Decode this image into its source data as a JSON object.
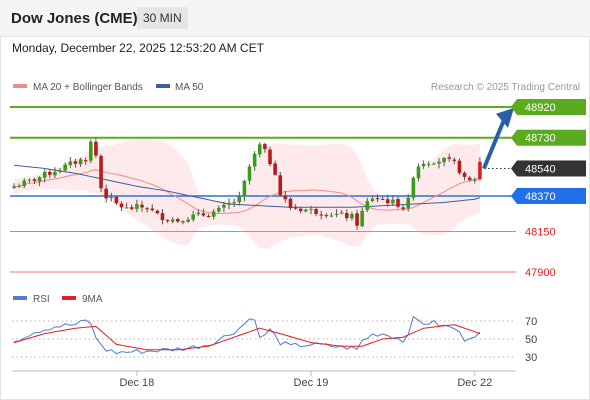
{
  "header": {
    "title": "Dow Jones (CME)",
    "interval": "30 MIN",
    "datetime": "Monday, December 22, 2025 12:53:20 AM CET"
  },
  "legend": {
    "ma20": {
      "label": "MA 20 + Bollinger Bands",
      "color": "#f08a8a"
    },
    "ma50": {
      "label": "MA 50",
      "color": "#3a5fa0"
    },
    "rsi": {
      "label": "RSI",
      "color": "#4d7bdc"
    },
    "rsi_ma": {
      "label": "9MA",
      "color": "#e02020"
    }
  },
  "copyright": "Research © 2025 Trading Central",
  "chart_data": {
    "type": "candlestick",
    "ylim": [
      47900,
      48920
    ],
    "x_tick_labels": [
      {
        "label": "Dec 18",
        "bar": 24
      },
      {
        "label": "Dec 19",
        "bar": 58
      },
      {
        "label": "Dec 22",
        "bar": 90
      }
    ],
    "levels": [
      {
        "value": 48920,
        "label": "48920",
        "kind": "resistance"
      },
      {
        "value": 48730,
        "label": "48730",
        "kind": "resistance"
      },
      {
        "value": 48540,
        "label": "48540",
        "kind": "last"
      },
      {
        "value": 48370,
        "label": "48370",
        "kind": "pivot"
      },
      {
        "value": 48150,
        "label": "48150",
        "kind": "support"
      },
      {
        "value": 47900,
        "label": "47900",
        "kind": "support"
      }
    ],
    "arrow": {
      "from_value": 48540,
      "to_value": 48890,
      "direction": "up"
    },
    "anchors": [
      [
        0,
        48430
      ],
      [
        3,
        48460
      ],
      [
        6,
        48500
      ],
      [
        9,
        48540
      ],
      [
        12,
        48580
      ],
      [
        14,
        48600
      ],
      [
        15,
        48700
      ],
      [
        16,
        48620
      ],
      [
        17,
        48420
      ],
      [
        18,
        48370
      ],
      [
        20,
        48320
      ],
      [
        22,
        48290
      ],
      [
        24,
        48300
      ],
      [
        26,
        48300
      ],
      [
        28,
        48250
      ],
      [
        30,
        48230
      ],
      [
        32,
        48220
      ],
      [
        34,
        48240
      ],
      [
        36,
        48250
      ],
      [
        38,
        48260
      ],
      [
        40,
        48280
      ],
      [
        42,
        48320
      ],
      [
        44,
        48350
      ],
      [
        45,
        48450
      ],
      [
        46,
        48550
      ],
      [
        47,
        48620
      ],
      [
        48,
        48680
      ],
      [
        49,
        48640
      ],
      [
        50,
        48580
      ],
      [
        51,
        48520
      ],
      [
        52,
        48380
      ],
      [
        54,
        48300
      ],
      [
        56,
        48290
      ],
      [
        58,
        48280
      ],
      [
        60,
        48270
      ],
      [
        62,
        48260
      ],
      [
        64,
        48250
      ],
      [
        66,
        48240
      ],
      [
        67,
        48200
      ],
      [
        68,
        48270
      ],
      [
        69,
        48330
      ],
      [
        70,
        48360
      ],
      [
        72,
        48350
      ],
      [
        74,
        48330
      ],
      [
        75,
        48320
      ],
      [
        76,
        48300
      ],
      [
        77,
        48340
      ],
      [
        78,
        48500
      ],
      [
        79,
        48560
      ],
      [
        80,
        48580
      ],
      [
        82,
        48590
      ],
      [
        84,
        48590
      ],
      [
        86,
        48570
      ],
      [
        87,
        48530
      ],
      [
        88,
        48470
      ],
      [
        89,
        48460
      ],
      [
        90,
        48480
      ],
      [
        91,
        48580
      ]
    ],
    "ma50_anchors": [
      [
        0,
        48560
      ],
      [
        6,
        48540
      ],
      [
        12,
        48510
      ],
      [
        18,
        48470
      ],
      [
        24,
        48430
      ],
      [
        30,
        48400
      ],
      [
        36,
        48360
      ],
      [
        42,
        48320
      ],
      [
        48,
        48310
      ],
      [
        54,
        48300
      ],
      [
        60,
        48300
      ],
      [
        66,
        48300
      ],
      [
        72,
        48310
      ],
      [
        78,
        48320
      ],
      [
        84,
        48330
      ],
      [
        90,
        48350
      ],
      [
        91,
        48360
      ]
    ],
    "rsi": {
      "ylim": [
        20,
        80
      ],
      "ticks": [
        70,
        50,
        30
      ],
      "anchors": [
        [
          0,
          48
        ],
        [
          4,
          58
        ],
        [
          8,
          64
        ],
        [
          12,
          66
        ],
        [
          14,
          70
        ],
        [
          15,
          68
        ],
        [
          16,
          50
        ],
        [
          18,
          38
        ],
        [
          20,
          35
        ],
        [
          24,
          36
        ],
        [
          30,
          38
        ],
        [
          34,
          40
        ],
        [
          38,
          44
        ],
        [
          42,
          55
        ],
        [
          44,
          62
        ],
        [
          46,
          72
        ],
        [
          47,
          74
        ],
        [
          48,
          50
        ],
        [
          50,
          60
        ],
        [
          52,
          46
        ],
        [
          54,
          42
        ],
        [
          58,
          44
        ],
        [
          62,
          42
        ],
        [
          66,
          40
        ],
        [
          67,
          38
        ],
        [
          68,
          48
        ],
        [
          70,
          55
        ],
        [
          72,
          56
        ],
        [
          74,
          53
        ],
        [
          76,
          48
        ],
        [
          77,
          58
        ],
        [
          78,
          72
        ],
        [
          80,
          68
        ],
        [
          82,
          68
        ],
        [
          84,
          64
        ],
        [
          86,
          62
        ],
        [
          88,
          50
        ],
        [
          90,
          55
        ],
        [
          91,
          56
        ]
      ],
      "ma_anchors": [
        [
          0,
          46
        ],
        [
          6,
          56
        ],
        [
          12,
          62
        ],
        [
          16,
          64
        ],
        [
          20,
          44
        ],
        [
          26,
          38
        ],
        [
          32,
          38
        ],
        [
          38,
          42
        ],
        [
          44,
          54
        ],
        [
          48,
          62
        ],
        [
          52,
          56
        ],
        [
          58,
          46
        ],
        [
          64,
          42
        ],
        [
          68,
          42
        ],
        [
          72,
          50
        ],
        [
          76,
          52
        ],
        [
          80,
          62
        ],
        [
          86,
          66
        ],
        [
          91,
          56
        ]
      ]
    }
  }
}
